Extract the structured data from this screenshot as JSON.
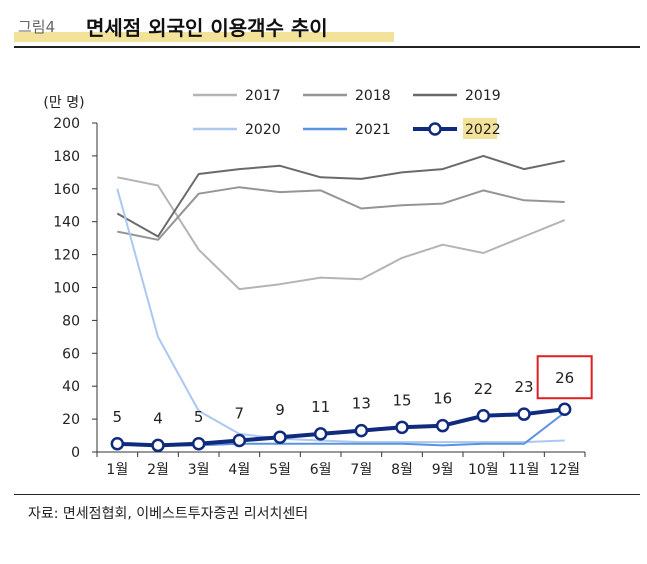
{
  "figure": {
    "label": "그림4",
    "title": "면세점 외국인 이용객수 추이",
    "source": "자료: 면세점협회, 이베스트투자증권 리서치센터"
  },
  "chart_data": {
    "type": "line",
    "ylabel": "(만 명)",
    "xlabel": "",
    "ylim": [
      0,
      200
    ],
    "yticks": [
      0,
      20,
      40,
      60,
      80,
      100,
      120,
      140,
      160,
      180,
      200
    ],
    "categories": [
      "1월",
      "2월",
      "3월",
      "4월",
      "5월",
      "6월",
      "7월",
      "8월",
      "9월",
      "10월",
      "11월",
      "12월"
    ],
    "grid": false,
    "legend_position": "top",
    "series": [
      {
        "name": "2017",
        "color": "#b4b4b4",
        "values": [
          167,
          162,
          123,
          99,
          102,
          106,
          105,
          118,
          126,
          121,
          131,
          141
        ]
      },
      {
        "name": "2018",
        "color": "#959595",
        "values": [
          134,
          129,
          157,
          161,
          158,
          159,
          148,
          150,
          151,
          159,
          153,
          152
        ]
      },
      {
        "name": "2019",
        "color": "#6a6a6a",
        "values": [
          145,
          131,
          169,
          172,
          174,
          167,
          166,
          170,
          172,
          180,
          172,
          177
        ]
      },
      {
        "name": "2020",
        "color": "#aac8f0",
        "values": [
          160,
          70,
          25,
          11,
          8,
          7,
          6,
          6,
          6,
          6,
          6,
          7
        ]
      },
      {
        "name": "2021",
        "color": "#5b93e0",
        "values": [
          5,
          4,
          4,
          5,
          5,
          5,
          5,
          5,
          4,
          5,
          5,
          24
        ]
      },
      {
        "name": "2022",
        "color": "#102a7e",
        "values": [
          5,
          4,
          5,
          7,
          9,
          11,
          13,
          15,
          16,
          22,
          23,
          26
        ]
      }
    ],
    "data_labels": {
      "series": "2022",
      "labels": [
        "5",
        "4",
        "5",
        "7",
        "9",
        "11",
        "13",
        "15",
        "16",
        "22",
        "23",
        "26"
      ],
      "highlight_index": 11,
      "highlight_color": "#e02020"
    }
  }
}
